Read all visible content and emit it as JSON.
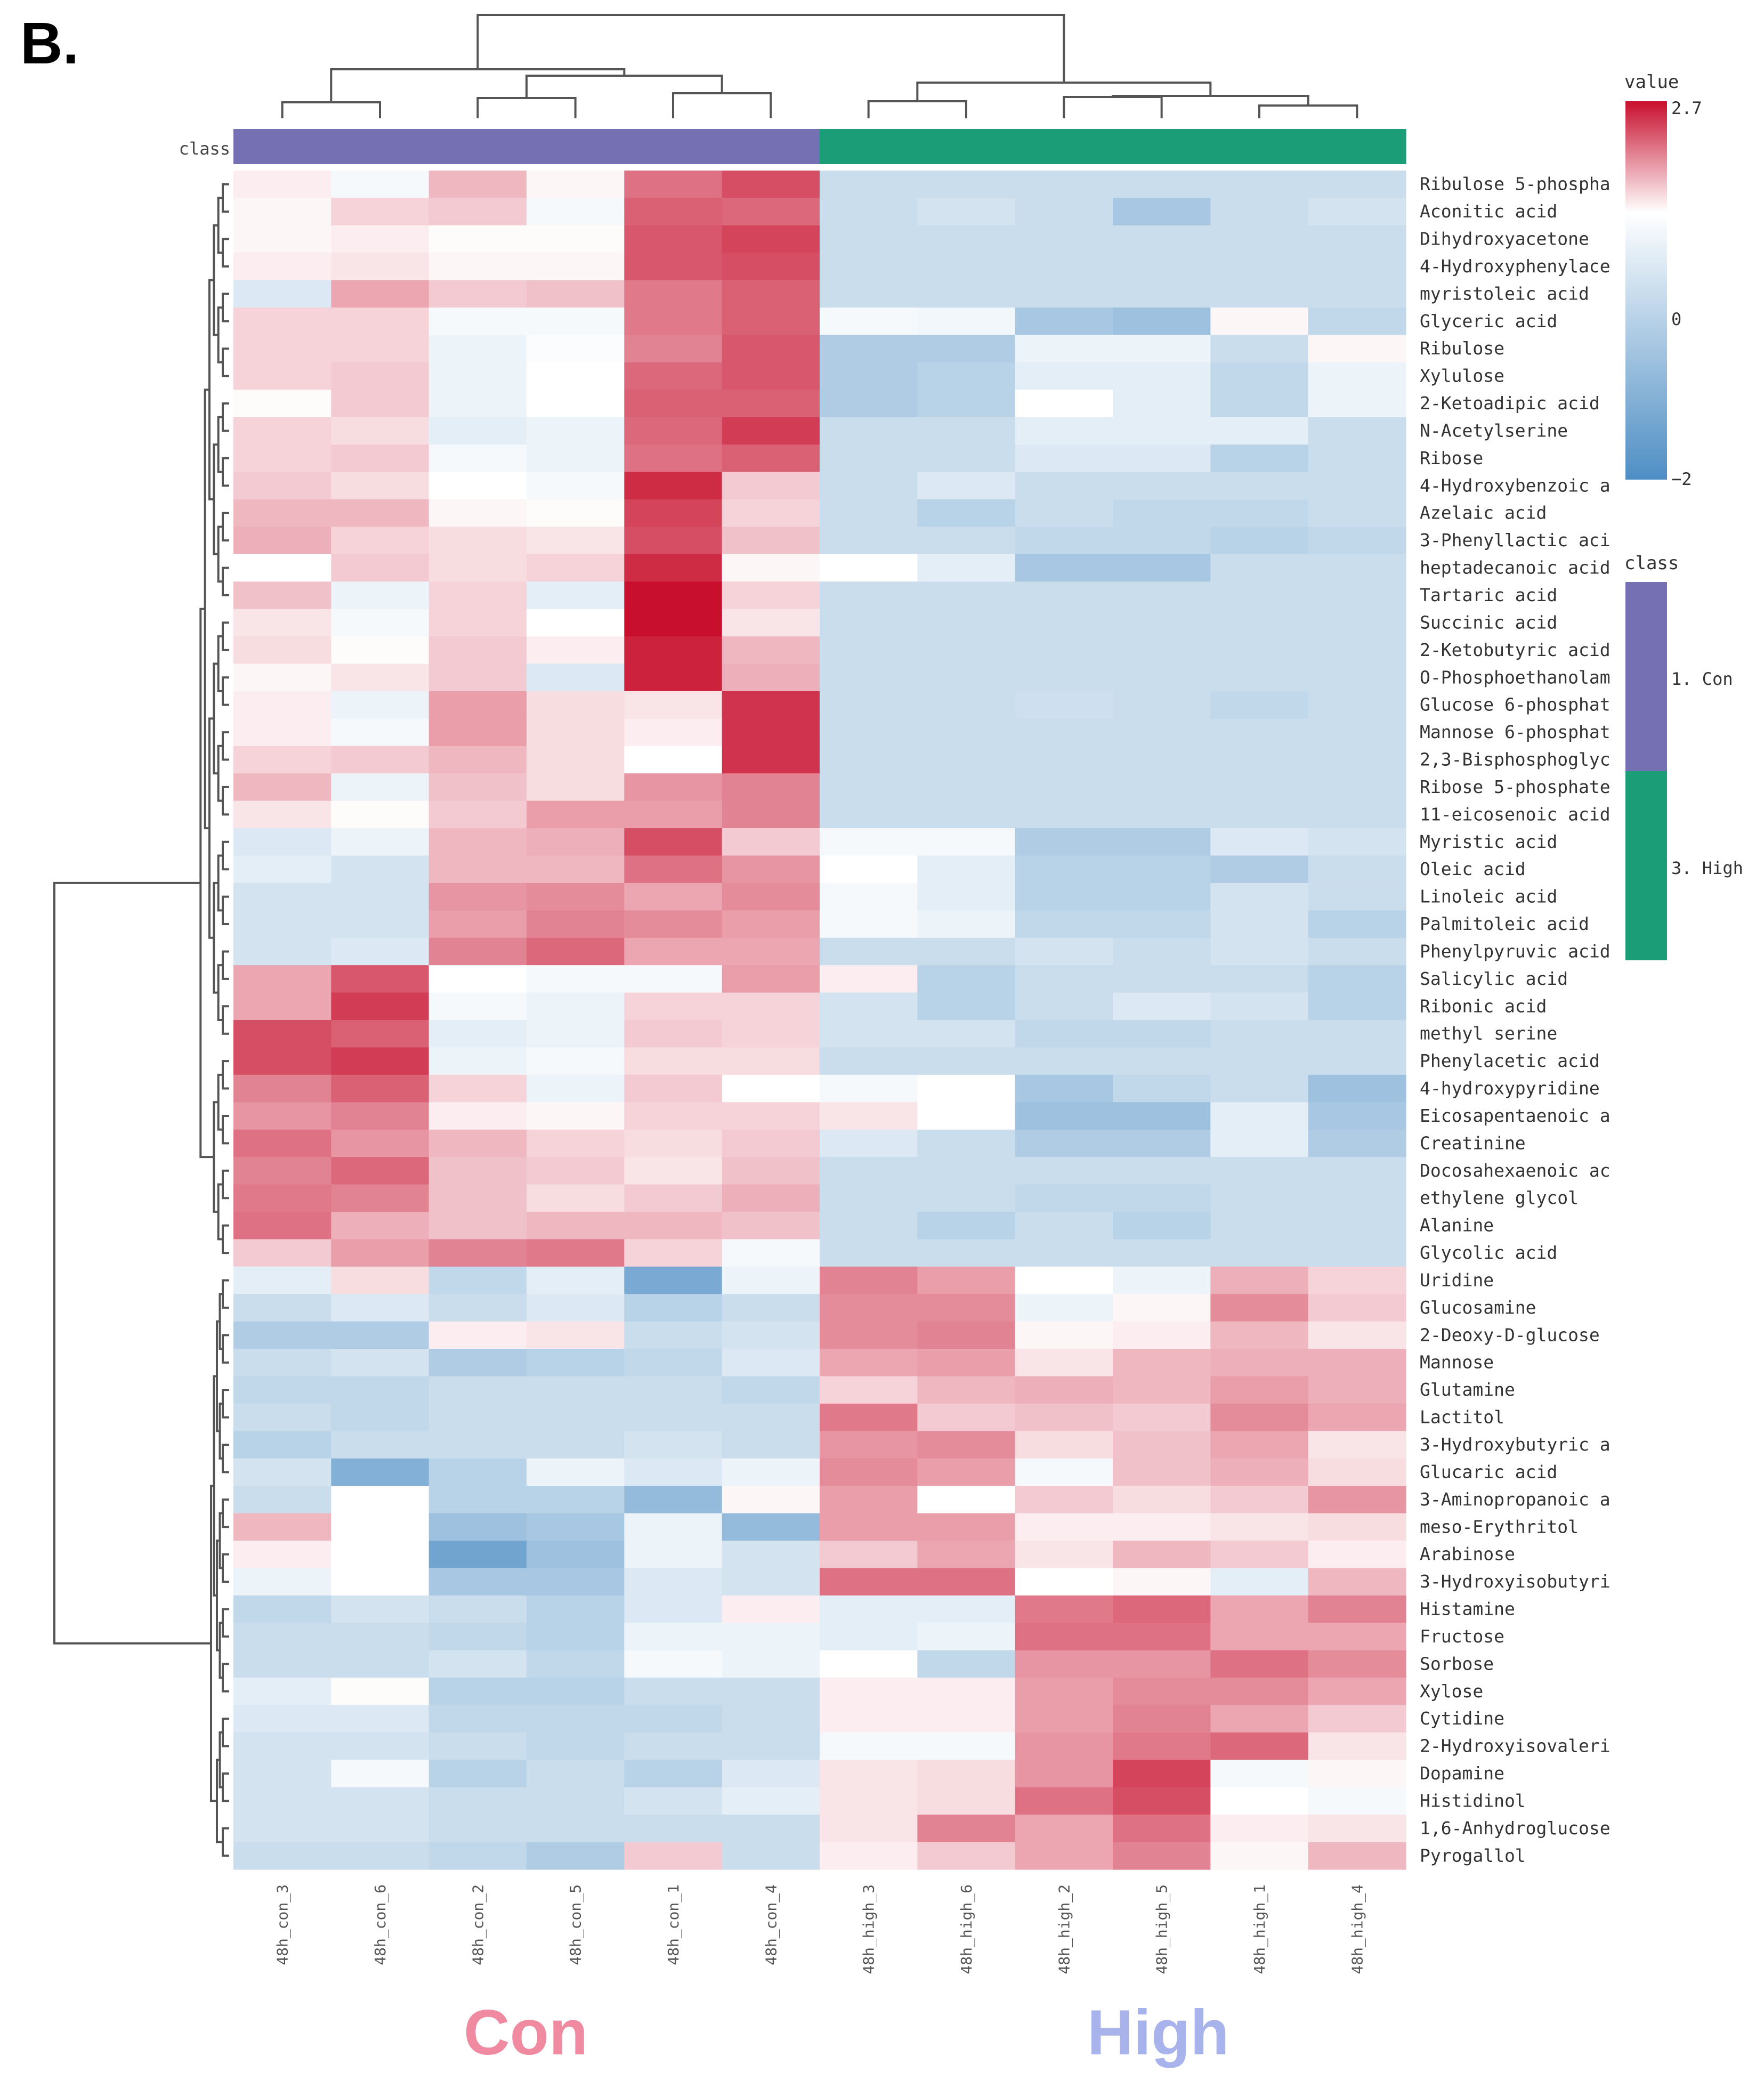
{
  "panel_label": "B.",
  "group_labels": [
    {
      "text": "Con",
      "color": "#f08aa0"
    },
    {
      "text": "High",
      "color": "#a7b3ea"
    }
  ],
  "chart_data": {
    "type": "heatmap",
    "class_bar_label": "class",
    "value_legend": {
      "title": "value",
      "max": 2.7,
      "mid": 0,
      "min": -2,
      "max_label": "2.7",
      "mid_label": "0",
      "min_label": "−2",
      "colors": [
        "#4e8ec4",
        "#ffffff",
        "#c8102e"
      ]
    },
    "class_legend": {
      "title": "class",
      "items": [
        {
          "label": "1. Con",
          "color": "#7570b3"
        },
        {
          "label": "3. High",
          "color": "#1b9e77"
        }
      ]
    },
    "columns": [
      "48h_con_3",
      "48h_con_6",
      "48h_con_2",
      "48h_con_5",
      "48h_con_1",
      "48h_con_4",
      "48h_high_3",
      "48h_high_6",
      "48h_high_2",
      "48h_high_5",
      "48h_high_1",
      "48h_high_4"
    ],
    "column_classes": [
      "Con",
      "Con",
      "Con",
      "Con",
      "Con",
      "Con",
      "High",
      "High",
      "High",
      "High",
      "High",
      "High"
    ],
    "rows": [
      "Ribulose 5-phospha",
      "Aconitic acid",
      "Dihydroxyacetone",
      "4-Hydroxyphenylace",
      "myristoleic acid",
      "Glyceric acid",
      "Ribulose",
      "Xylulose",
      "2-Ketoadipic acid",
      "N-Acetylserine",
      "Ribose",
      "4-Hydroxybenzoic a",
      "Azelaic acid",
      "3-Phenyllactic aci",
      "heptadecanoic acid",
      "Tartaric acid",
      "Succinic acid",
      "2-Ketobutyric acid",
      "O-Phosphoethanolam",
      "Glucose 6-phosphat",
      "Mannose 6-phosphat",
      "2,3-Bisphosphoglyc",
      "Ribose 5-phosphate",
      "11-eicosenoic acid",
      "Myristic acid",
      "Oleic acid",
      "Linoleic acid",
      "Palmitoleic acid",
      "Phenylpyruvic acid",
      "Salicylic acid",
      "Ribonic acid",
      "methyl serine",
      "Phenylacetic acid",
      "4-hydroxypyridine",
      "Eicosapentaenoic a",
      "Creatinine",
      "Docosahexaenoic ac",
      "ethylene glycol",
      "Alanine",
      "Glycolic acid",
      "Uridine",
      "Glucosamine",
      "2-Deoxy-D-glucose",
      "Mannose",
      "Glutamine",
      "Lactitol",
      "3-Hydroxybutyric a",
      "Glucaric acid",
      "3-Aminopropanoic a",
      "meso-Erythritol",
      "Arabinose",
      "3-Hydroxyisobutyri",
      "Histamine",
      "Fructose",
      "Sorbose",
      "Xylose",
      "Cytidine",
      "2-Hydroxyisovaleri",
      "Dopamine",
      "Histidinol",
      "1,6-Anhydroglucose",
      "Pyrogallol"
    ],
    "values": [
      [
        0.2,
        -0.1,
        0.8,
        0.1,
        1.6,
        2.0,
        -0.6,
        -0.6,
        -0.6,
        -0.6,
        -0.6,
        -0.6
      ],
      [
        0.1,
        0.5,
        0.6,
        -0.1,
        1.8,
        1.7,
        -0.6,
        -0.5,
        -0.6,
        -1.0,
        -0.6,
        -0.5
      ],
      [
        0.1,
        0.2,
        0.05,
        0.05,
        1.9,
        2.1,
        -0.6,
        -0.6,
        -0.6,
        -0.6,
        -0.6,
        -0.6
      ],
      [
        0.2,
        0.3,
        0.1,
        0.1,
        1.9,
        2.0,
        -0.6,
        -0.6,
        -0.6,
        -0.6,
        -0.6,
        -0.6
      ],
      [
        -0.4,
        1.0,
        0.6,
        0.7,
        1.5,
        1.8,
        -0.6,
        -0.6,
        -0.6,
        -0.6,
        -0.6,
        -0.6
      ],
      [
        0.5,
        0.5,
        -0.1,
        -0.1,
        1.5,
        1.8,
        -0.1,
        -0.15,
        -1.0,
        -1.1,
        0.1,
        -0.7
      ],
      [
        0.5,
        0.5,
        -0.2,
        -0.05,
        1.4,
        1.9,
        -0.9,
        -0.9,
        -0.2,
        -0.2,
        -0.6,
        0.1
      ],
      [
        0.5,
        0.6,
        -0.2,
        0.0,
        1.7,
        1.9,
        -0.9,
        -0.8,
        -0.3,
        -0.3,
        -0.7,
        -0.2
      ],
      [
        0.05,
        0.6,
        -0.2,
        0.0,
        1.8,
        1.8,
        -0.9,
        -0.8,
        0.0,
        -0.3,
        -0.7,
        -0.2
      ],
      [
        0.5,
        0.4,
        -0.3,
        -0.2,
        1.7,
        2.2,
        -0.6,
        -0.6,
        -0.3,
        -0.3,
        -0.3,
        -0.6
      ],
      [
        0.5,
        0.6,
        -0.1,
        -0.2,
        1.6,
        1.8,
        -0.6,
        -0.6,
        -0.4,
        -0.4,
        -0.8,
        -0.6
      ],
      [
        0.6,
        0.4,
        0.0,
        -0.1,
        2.4,
        0.6,
        -0.6,
        -0.4,
        -0.6,
        -0.6,
        -0.6,
        -0.6
      ],
      [
        0.8,
        0.8,
        0.1,
        0.05,
        2.1,
        0.5,
        -0.6,
        -0.8,
        -0.6,
        -0.7,
        -0.7,
        -0.6
      ],
      [
        0.9,
        0.5,
        0.4,
        0.3,
        2.0,
        0.7,
        -0.6,
        -0.6,
        -0.7,
        -0.7,
        -0.8,
        -0.7
      ],
      [
        0.0,
        0.6,
        0.4,
        0.5,
        2.4,
        0.1,
        0.0,
        -0.3,
        -1.0,
        -1.0,
        -0.6,
        -0.6
      ],
      [
        0.7,
        -0.2,
        0.5,
        -0.3,
        2.7,
        0.5,
        -0.6,
        -0.6,
        -0.6,
        -0.6,
        -0.6,
        -0.6
      ],
      [
        0.3,
        -0.1,
        0.5,
        0.0,
        2.7,
        0.3,
        -0.6,
        -0.6,
        -0.6,
        -0.6,
        -0.6,
        -0.6
      ],
      [
        0.4,
        0.05,
        0.6,
        0.2,
        2.5,
        0.8,
        -0.6,
        -0.6,
        -0.6,
        -0.6,
        -0.6,
        -0.6
      ],
      [
        0.1,
        0.3,
        0.6,
        -0.4,
        2.5,
        0.9,
        -0.6,
        -0.6,
        -0.6,
        -0.6,
        -0.6,
        -0.6
      ],
      [
        0.2,
        -0.2,
        1.1,
        0.4,
        0.3,
        2.3,
        -0.6,
        -0.6,
        -0.55,
        -0.6,
        -0.7,
        -0.6
      ],
      [
        0.2,
        -0.1,
        1.1,
        0.4,
        0.2,
        2.3,
        -0.6,
        -0.6,
        -0.6,
        -0.6,
        -0.6,
        -0.6
      ],
      [
        0.5,
        0.6,
        0.8,
        0.4,
        0.0,
        2.3,
        -0.6,
        -0.6,
        -0.6,
        -0.6,
        -0.6,
        -0.6
      ],
      [
        0.8,
        -0.2,
        0.7,
        0.4,
        1.2,
        1.4,
        -0.6,
        -0.6,
        -0.6,
        -0.6,
        -0.6,
        -0.6
      ],
      [
        0.3,
        0.05,
        0.6,
        1.1,
        1.1,
        1.4,
        -0.6,
        -0.6,
        -0.6,
        -0.6,
        -0.6,
        -0.6
      ],
      [
        -0.4,
        -0.2,
        0.8,
        0.9,
        2.0,
        0.6,
        -0.1,
        -0.1,
        -0.9,
        -0.9,
        -0.4,
        -0.5
      ],
      [
        -0.3,
        -0.5,
        0.8,
        0.8,
        1.6,
        1.2,
        0.0,
        -0.3,
        -0.8,
        -0.8,
        -0.9,
        -0.6
      ],
      [
        -0.5,
        -0.5,
        1.2,
        1.3,
        1.0,
        1.3,
        -0.1,
        -0.3,
        -0.8,
        -0.8,
        -0.5,
        -0.6
      ],
      [
        -0.5,
        -0.5,
        1.1,
        1.4,
        1.3,
        1.1,
        -0.1,
        -0.2,
        -0.7,
        -0.7,
        -0.5,
        -0.8
      ],
      [
        -0.5,
        -0.4,
        1.4,
        1.7,
        1.0,
        1.0,
        -0.6,
        -0.6,
        -0.5,
        -0.6,
        -0.5,
        -0.6
      ],
      [
        1.0,
        1.9,
        0.0,
        -0.1,
        -0.1,
        1.1,
        0.2,
        -0.8,
        -0.6,
        -0.6,
        -0.6,
        -0.8
      ],
      [
        1.0,
        2.2,
        -0.1,
        -0.2,
        0.5,
        0.5,
        -0.5,
        -0.8,
        -0.6,
        -0.4,
        -0.5,
        -0.8
      ],
      [
        2.0,
        1.8,
        -0.3,
        -0.2,
        0.6,
        0.5,
        -0.5,
        -0.5,
        -0.7,
        -0.7,
        -0.6,
        -0.6
      ],
      [
        2.0,
        2.2,
        -0.2,
        -0.1,
        0.4,
        0.4,
        -0.6,
        -0.6,
        -0.6,
        -0.6,
        -0.6,
        -0.6
      ],
      [
        1.4,
        1.8,
        0.5,
        -0.2,
        0.6,
        0.0,
        -0.1,
        0.0,
        -1.0,
        -0.7,
        -0.6,
        -1.1
      ],
      [
        1.2,
        1.4,
        0.2,
        0.1,
        0.5,
        0.5,
        0.3,
        0.0,
        -1.1,
        -1.1,
        -0.3,
        -1.0
      ],
      [
        1.6,
        1.2,
        0.8,
        0.5,
        0.4,
        0.6,
        -0.4,
        -0.6,
        -0.9,
        -0.9,
        -0.3,
        -0.9
      ],
      [
        1.4,
        1.7,
        0.7,
        0.6,
        0.3,
        0.7,
        -0.6,
        -0.6,
        -0.6,
        -0.6,
        -0.6,
        -0.6
      ],
      [
        1.5,
        1.4,
        0.7,
        0.4,
        0.6,
        0.9,
        -0.6,
        -0.6,
        -0.7,
        -0.7,
        -0.6,
        -0.6
      ],
      [
        1.6,
        0.9,
        0.7,
        0.8,
        0.8,
        0.7,
        -0.6,
        -0.8,
        -0.6,
        -0.8,
        -0.6,
        -0.6
      ],
      [
        0.6,
        1.1,
        1.4,
        1.5,
        0.5,
        -0.1,
        -0.6,
        -0.6,
        -0.6,
        -0.6,
        -0.6,
        -0.6
      ],
      [
        -0.3,
        0.4,
        -0.7,
        -0.3,
        -1.5,
        -0.2,
        1.4,
        1.1,
        0.0,
        -0.2,
        0.9,
        0.5
      ],
      [
        -0.6,
        -0.4,
        -0.6,
        -0.4,
        -0.8,
        -0.6,
        1.3,
        1.3,
        -0.2,
        0.1,
        1.3,
        0.6
      ],
      [
        -0.9,
        -0.9,
        0.2,
        0.3,
        -0.6,
        -0.5,
        1.3,
        1.4,
        0.1,
        0.2,
        0.8,
        0.3
      ],
      [
        -0.6,
        -0.5,
        -0.9,
        -0.8,
        -0.7,
        -0.4,
        1.0,
        1.1,
        0.3,
        0.8,
        0.9,
        0.9
      ],
      [
        -0.7,
        -0.7,
        -0.6,
        -0.6,
        -0.6,
        -0.7,
        0.5,
        0.8,
        0.9,
        0.8,
        1.1,
        0.9
      ],
      [
        -0.6,
        -0.7,
        -0.6,
        -0.6,
        -0.6,
        -0.6,
        1.5,
        0.6,
        0.7,
        0.6,
        1.3,
        1.0
      ],
      [
        -0.8,
        -0.6,
        -0.6,
        -0.6,
        -0.5,
        -0.6,
        1.2,
        1.3,
        0.4,
        0.7,
        1.0,
        0.3
      ],
      [
        -0.5,
        -1.4,
        -0.8,
        -0.2,
        -0.4,
        -0.2,
        1.3,
        1.1,
        -0.1,
        0.7,
        0.9,
        0.4
      ],
      [
        -0.6,
        0.0,
        -0.8,
        -0.8,
        -1.2,
        0.1,
        1.1,
        0.0,
        0.6,
        0.4,
        0.6,
        1.2
      ],
      [
        0.8,
        0.0,
        -1.1,
        -1.0,
        -0.2,
        -1.2,
        1.1,
        1.1,
        0.2,
        0.2,
        0.3,
        0.4
      ],
      [
        0.2,
        0.0,
        -1.6,
        -1.1,
        -0.2,
        -0.5,
        0.6,
        1.0,
        0.3,
        0.8,
        0.6,
        0.2
      ],
      [
        -0.2,
        0.0,
        -1.0,
        -1.0,
        -0.4,
        -0.5,
        1.6,
        1.6,
        0.0,
        0.1,
        -0.3,
        0.8
      ],
      [
        -0.7,
        -0.5,
        -0.6,
        -0.8,
        -0.4,
        0.2,
        -0.3,
        -0.3,
        1.5,
        1.7,
        1.0,
        1.4
      ],
      [
        -0.6,
        -0.6,
        -0.7,
        -0.8,
        -0.2,
        -0.2,
        -0.3,
        -0.2,
        1.6,
        1.6,
        1.0,
        1.0
      ],
      [
        -0.6,
        -0.6,
        -0.5,
        -0.7,
        -0.1,
        -0.2,
        0.0,
        -0.7,
        1.2,
        1.2,
        1.6,
        1.3
      ],
      [
        -0.3,
        0.05,
        -0.8,
        -0.8,
        -0.6,
        -0.6,
        0.2,
        0.2,
        1.1,
        1.3,
        1.3,
        1.0
      ],
      [
        -0.4,
        -0.4,
        -0.7,
        -0.7,
        -0.7,
        -0.6,
        0.2,
        0.2,
        1.1,
        1.4,
        1.0,
        0.6
      ],
      [
        -0.5,
        -0.5,
        -0.6,
        -0.7,
        -0.6,
        -0.6,
        -0.1,
        -0.1,
        1.2,
        1.5,
        1.7,
        0.3
      ],
      [
        -0.5,
        -0.1,
        -0.8,
        -0.6,
        -0.8,
        -0.4,
        0.3,
        0.4,
        1.2,
        2.1,
        -0.1,
        0.1
      ],
      [
        -0.5,
        -0.5,
        -0.6,
        -0.6,
        -0.5,
        -0.3,
        0.3,
        0.4,
        1.6,
        2.0,
        0.0,
        -0.1
      ],
      [
        -0.5,
        -0.5,
        -0.6,
        -0.6,
        -0.6,
        -0.6,
        0.3,
        1.4,
        1.0,
        1.6,
        0.2,
        0.3
      ],
      [
        -0.6,
        -0.6,
        -0.7,
        -0.9,
        0.6,
        -0.6,
        0.2,
        0.6,
        1.0,
        1.4,
        0.1,
        0.8
      ]
    ],
    "column_order_note": ""
  }
}
